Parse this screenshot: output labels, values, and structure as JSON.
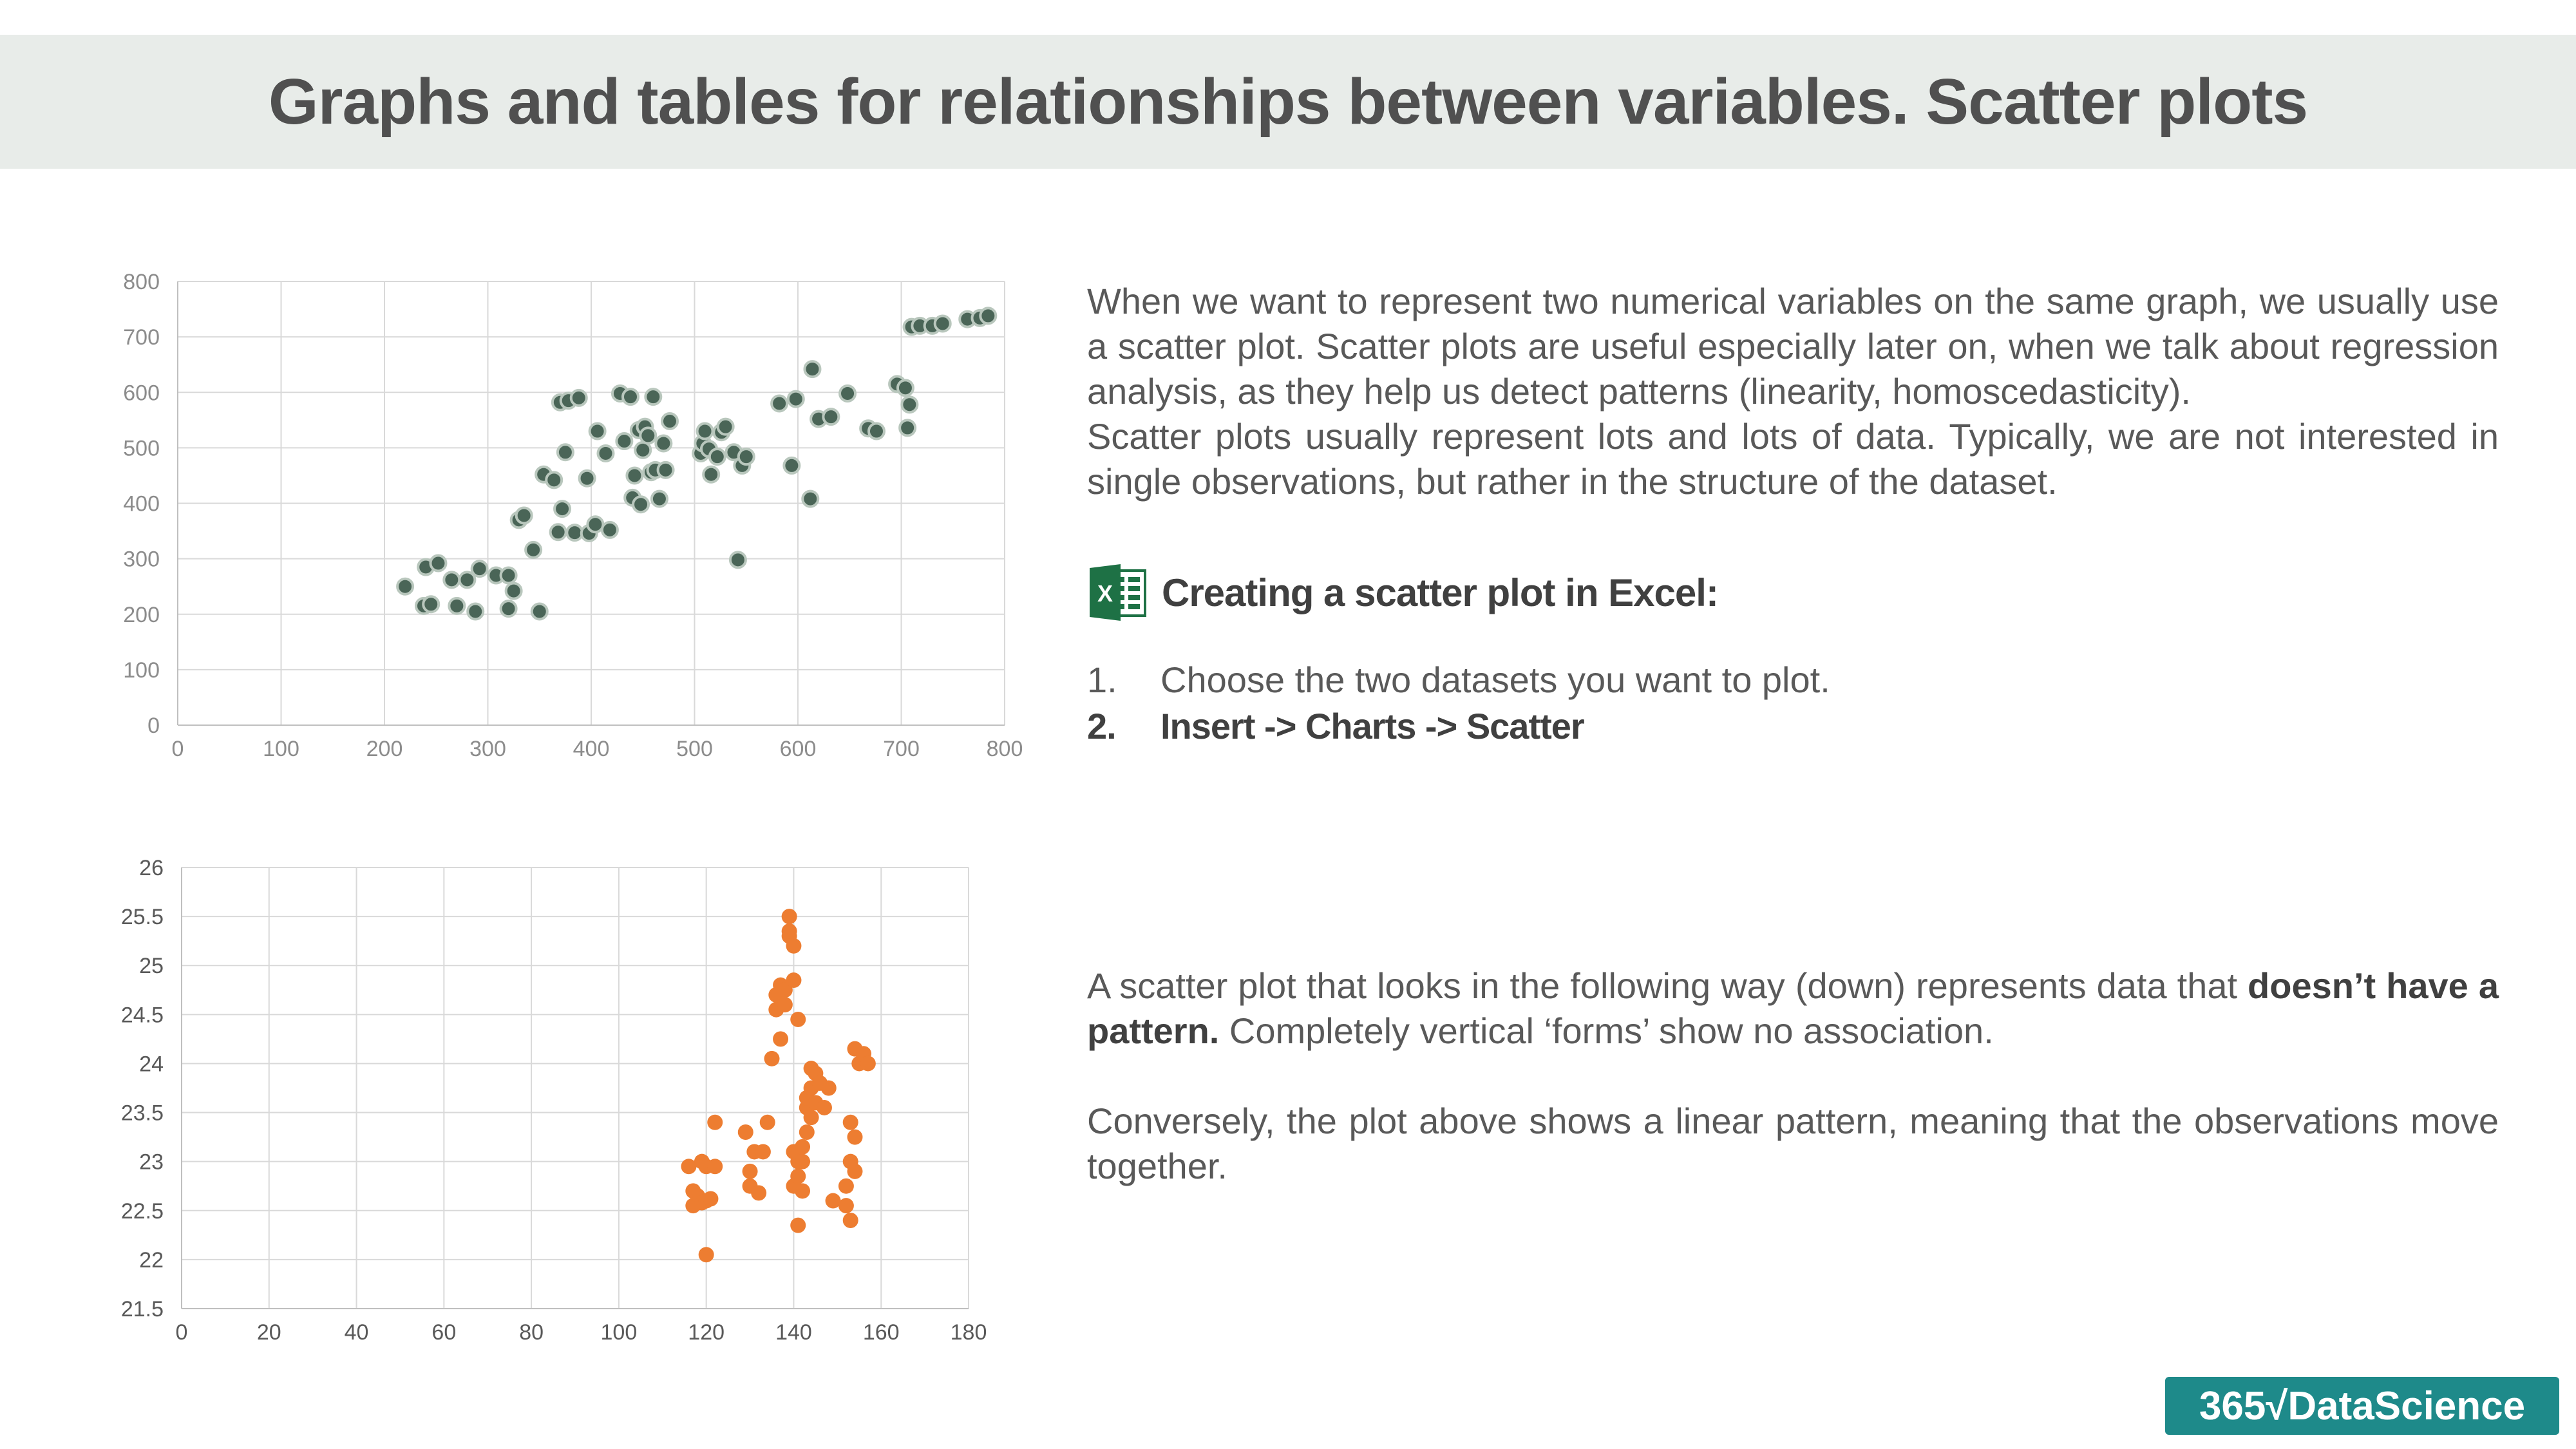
{
  "title": "Graphs and tables for relationships between variables. Scatter plots",
  "paragraph1": "When we want to represent two numerical variables on the same graph, we usually use a scatter plot. Scatter plots are useful especially later on, when we talk about regression analysis, as they help us detect patterns (linearity, homoscedasticity).",
  "paragraph2": "Scatter plots usually represent lots and lots of data. Typically, we are not interested in single observations, but rather in the structure of the dataset.",
  "excel_heading": "Creating a scatter plot in Excel:",
  "excel_icon": "excel-icon",
  "steps": [
    {
      "num": "1.",
      "text": "Choose the two datasets you want to plot."
    },
    {
      "num": "2.",
      "text": "Insert -> Charts -> Scatter"
    }
  ],
  "paragraph3_pre": "A scatter plot that looks in the following way (down) represents data that ",
  "paragraph3_bold": "doesn’t have a pattern.",
  "paragraph3_post": " Completely vertical ‘forms’ show no association.",
  "paragraph4": "Conversely, the plot above shows a linear pattern, meaning that the observations move together.",
  "logo_text": "365√DataScience",
  "colors": {
    "title_bar": "#e8ece9",
    "series1": "#4a6557",
    "series2": "#ed7d31",
    "logo": "#1e8a8a"
  },
  "chart_data": [
    {
      "type": "scatter",
      "title": "",
      "xlabel": "",
      "ylabel": "",
      "xlim": [
        0,
        800
      ],
      "ylim": [
        0,
        800
      ],
      "xticks": [
        0,
        100,
        200,
        300,
        400,
        500,
        600,
        700,
        800
      ],
      "yticks": [
        0,
        100,
        200,
        300,
        400,
        500,
        600,
        700,
        800
      ],
      "grid": true,
      "color": "#4a6557",
      "x": [
        220,
        238,
        240,
        245,
        252,
        265,
        270,
        280,
        288,
        292,
        308,
        320,
        320,
        325,
        330,
        335,
        344,
        350,
        354,
        364,
        368,
        370,
        372,
        375,
        378,
        384,
        388,
        396,
        398,
        404,
        406,
        414,
        418,
        428,
        432,
        438,
        440,
        442,
        446,
        448,
        450,
        452,
        455,
        458,
        460,
        462,
        466,
        470,
        472,
        476,
        506,
        508,
        510,
        514,
        516,
        522,
        526,
        530,
        538,
        542,
        546,
        550,
        582,
        594,
        598,
        612,
        614,
        620,
        632,
        648,
        668,
        676,
        696,
        704,
        706,
        708,
        710,
        718,
        730,
        740,
        764,
        776,
        784
      ],
      "y": [
        250,
        215,
        285,
        218,
        292,
        262,
        215,
        262,
        205,
        282,
        270,
        210,
        270,
        242,
        370,
        378,
        316,
        205,
        452,
        442,
        348,
        582,
        390,
        492,
        585,
        347,
        590,
        445,
        346,
        362,
        530,
        490,
        352,
        598,
        512,
        592,
        410,
        450,
        532,
        398,
        496,
        538,
        522,
        456,
        592,
        460,
        408,
        508,
        460,
        548,
        490,
        508,
        530,
        498,
        452,
        484,
        528,
        538,
        492,
        298,
        468,
        484,
        580,
        468,
        588,
        408,
        642,
        552,
        556,
        598,
        535,
        530,
        615,
        608,
        536,
        578,
        718,
        720,
        720,
        724,
        732,
        734,
        738
      ]
    },
    {
      "type": "scatter",
      "title": "",
      "xlabel": "",
      "ylabel": "",
      "xlim": [
        0,
        180
      ],
      "ylim": [
        21.5,
        26
      ],
      "xticks": [
        0,
        20,
        40,
        60,
        80,
        100,
        120,
        140,
        160,
        180
      ],
      "yticks": [
        "21.5",
        "22",
        "22.5",
        "23",
        "23.5",
        "24",
        "24.5",
        "25",
        "25.5",
        "26"
      ],
      "grid": true,
      "color": "#ed7d31",
      "x": [
        116,
        117,
        117,
        118,
        119,
        119,
        120,
        120,
        120,
        121,
        122,
        122,
        129,
        130,
        130,
        131,
        132,
        133,
        134,
        135,
        136,
        136,
        137,
        137,
        138,
        138,
        139,
        139,
        139,
        140,
        140,
        140,
        140,
        141,
        141,
        141,
        141,
        142,
        142,
        142,
        143,
        143,
        143,
        144,
        144,
        144,
        145,
        145,
        146,
        147,
        148,
        149,
        152,
        152,
        153,
        153,
        153,
        154,
        154,
        154,
        155,
        156,
        157
      ],
      "y": [
        22.95,
        22.55,
        22.7,
        22.65,
        22.58,
        23.0,
        22.05,
        22.95,
        22.6,
        22.62,
        23.4,
        22.95,
        23.3,
        22.75,
        22.9,
        23.1,
        22.68,
        23.1,
        23.4,
        24.05,
        24.55,
        24.7,
        24.25,
        24.8,
        24.6,
        24.75,
        25.3,
        25.35,
        25.5,
        24.85,
        25.2,
        23.1,
        22.75,
        22.35,
        24.45,
        23.0,
        22.85,
        22.7,
        23.0,
        23.15,
        23.3,
        23.55,
        23.65,
        23.75,
        23.95,
        23.45,
        23.9,
        23.6,
        23.8,
        23.55,
        23.75,
        22.6,
        22.55,
        22.75,
        22.4,
        23.0,
        23.4,
        24.15,
        23.25,
        22.9,
        24.0,
        24.1,
        24.0
      ]
    }
  ]
}
